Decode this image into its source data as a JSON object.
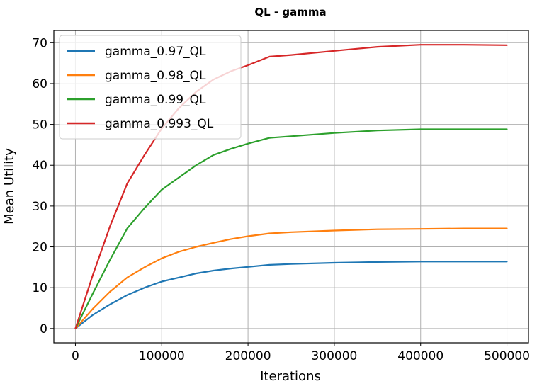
{
  "chart_data": {
    "type": "line",
    "title": "QL - gamma",
    "xlabel": "Iterations",
    "ylabel": "Mean Utility",
    "xlim": [
      -25000,
      525000
    ],
    "ylim": [
      -3.5,
      73
    ],
    "xticks": [
      0,
      100000,
      200000,
      300000,
      400000,
      500000
    ],
    "xtick_labels": [
      "0",
      "100000",
      "200000",
      "300000",
      "400000",
      "500000"
    ],
    "yticks": [
      0,
      10,
      20,
      30,
      40,
      50,
      60,
      70
    ],
    "ytick_labels": [
      "0",
      "10",
      "20",
      "30",
      "40",
      "50",
      "60",
      "70"
    ],
    "grid": true,
    "legend_position": "top-left",
    "series": [
      {
        "name": "gamma_0.97_QL",
        "color": "#1f77b4",
        "points": [
          [
            0,
            0
          ],
          [
            20000,
            3.3
          ],
          [
            40000,
            5.9
          ],
          [
            60000,
            8.2
          ],
          [
            80000,
            10.0
          ],
          [
            100000,
            11.5
          ],
          [
            120000,
            12.5
          ],
          [
            140000,
            13.5
          ],
          [
            160000,
            14.2
          ],
          [
            180000,
            14.7
          ],
          [
            200000,
            15.1
          ],
          [
            225000,
            15.6
          ],
          [
            250000,
            15.8
          ],
          [
            300000,
            16.1
          ],
          [
            350000,
            16.3
          ],
          [
            400000,
            16.4
          ],
          [
            450000,
            16.4
          ],
          [
            500000,
            16.4
          ]
        ]
      },
      {
        "name": "gamma_0.98_QL",
        "color": "#ff7f0e",
        "points": [
          [
            0,
            0
          ],
          [
            20000,
            4.8
          ],
          [
            40000,
            9.0
          ],
          [
            60000,
            12.5
          ],
          [
            80000,
            15.0
          ],
          [
            100000,
            17.2
          ],
          [
            120000,
            18.8
          ],
          [
            140000,
            20.0
          ],
          [
            160000,
            21.0
          ],
          [
            180000,
            21.9
          ],
          [
            200000,
            22.6
          ],
          [
            225000,
            23.3
          ],
          [
            250000,
            23.6
          ],
          [
            300000,
            24.0
          ],
          [
            350000,
            24.3
          ],
          [
            400000,
            24.4
          ],
          [
            450000,
            24.5
          ],
          [
            500000,
            24.5
          ]
        ]
      },
      {
        "name": "gamma_0.99_QL",
        "color": "#2ca02c",
        "points": [
          [
            0,
            0
          ],
          [
            20000,
            8.5
          ],
          [
            40000,
            16.8
          ],
          [
            60000,
            24.5
          ],
          [
            80000,
            29.5
          ],
          [
            100000,
            34.0
          ],
          [
            120000,
            37.0
          ],
          [
            140000,
            40.0
          ],
          [
            160000,
            42.5
          ],
          [
            180000,
            44.0
          ],
          [
            200000,
            45.3
          ],
          [
            225000,
            46.7
          ],
          [
            250000,
            47.1
          ],
          [
            300000,
            47.9
          ],
          [
            350000,
            48.5
          ],
          [
            400000,
            48.8
          ],
          [
            450000,
            48.8
          ],
          [
            500000,
            48.8
          ]
        ]
      },
      {
        "name": "gamma_0.993_QL",
        "color": "#d62728",
        "points": [
          [
            0,
            0
          ],
          [
            20000,
            13.0
          ],
          [
            40000,
            25.0
          ],
          [
            60000,
            35.5
          ],
          [
            80000,
            42.5
          ],
          [
            100000,
            49.0
          ],
          [
            120000,
            54.0
          ],
          [
            140000,
            58.0
          ],
          [
            160000,
            61.0
          ],
          [
            180000,
            63.0
          ],
          [
            200000,
            64.5
          ],
          [
            225000,
            66.6
          ],
          [
            250000,
            67.0
          ],
          [
            300000,
            68.0
          ],
          [
            350000,
            69.0
          ],
          [
            400000,
            69.5
          ],
          [
            450000,
            69.5
          ],
          [
            500000,
            69.4
          ]
        ]
      }
    ]
  }
}
